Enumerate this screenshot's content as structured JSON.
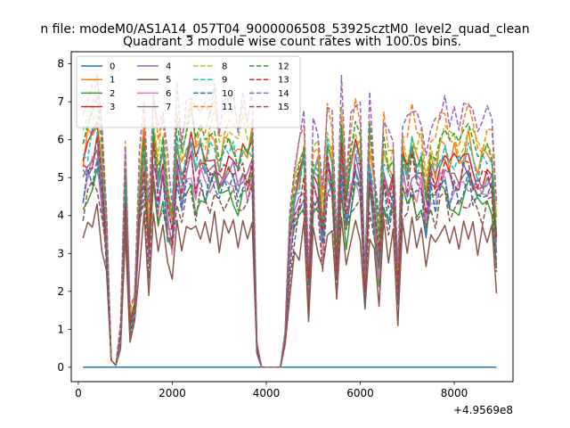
{
  "chart_data": {
    "type": "line",
    "suptitle": "n file: modeM0/AS1A14_057T04_9000006508_53925cztM0_level2_quad_clean",
    "title": "Quadrant 3 module wise count rates with 100.0s bins.",
    "xlabel": "",
    "ylabel": "",
    "x_offset_label": "+4.9569e8",
    "xlim": [
      -150,
      9250
    ],
    "ylim": [
      -0.38,
      8.32
    ],
    "xticks": [
      0,
      2000,
      4000,
      6000,
      8000
    ],
    "xtick_labels": [
      "0",
      "2000",
      "4000",
      "6000",
      "8000"
    ],
    "yticks": [
      0,
      1,
      2,
      3,
      4,
      5,
      6,
      7,
      8
    ],
    "ytick_labels": [
      "0",
      "1",
      "2",
      "3",
      "4",
      "5",
      "6",
      "7",
      "8"
    ],
    "grid": false,
    "legend_position": "top-left",
    "legend_columns": 4,
    "x_start": 100,
    "x_step": 100,
    "point_count": 89,
    "active_base": [
      5.25,
      5.62,
      5.85,
      6.2,
      5.05,
      3.4,
      0.18,
      0.05,
      0.9,
      4.8,
      1.2,
      1.6,
      4.3,
      5.8,
      3.2,
      5.9,
      4.8,
      5.6,
      4.2,
      3.6,
      5.7,
      4.9,
      5.3,
      5.9,
      5.2,
      5.6,
      5.3,
      5.5,
      5.7,
      5.1,
      5.4,
      5.8,
      5.5,
      5.1,
      5.6,
      5.3,
      5.7,
      0.55,
      0.0,
      0.0,
      0.0,
      0.0,
      0.0,
      0.75,
      3.3,
      4.1,
      4.8,
      5.3,
      2.2,
      5.1,
      5.0,
      3.6,
      5.6,
      5.2,
      2.9,
      5.9,
      4.1,
      5.1,
      5.7,
      5.3,
      2.1,
      5.5,
      4.3,
      2.9,
      5.4,
      4.7,
      5.0,
      2.0,
      5.3,
      5.0,
      5.6,
      5.1,
      5.3,
      4.2,
      5.2,
      5.0,
      5.4,
      5.5,
      5.2,
      5.3,
      5.1,
      5.4,
      5.6,
      5.3,
      5.0,
      5.1,
      5.5,
      5.2,
      3.4
    ],
    "series": [
      {
        "name": "0",
        "color": "#1f77b4",
        "style": "solid",
        "constant": 0
      },
      {
        "name": "1",
        "color": "#ff7f0e",
        "style": "solid",
        "scale": 1.06
      },
      {
        "name": "2",
        "color": "#2ca02c",
        "style": "solid",
        "scale": 0.84
      },
      {
        "name": "3",
        "color": "#d62728",
        "style": "solid",
        "scale": 1.0
      },
      {
        "name": "4",
        "color": "#9467bd",
        "style": "solid",
        "scale": 0.93
      },
      {
        "name": "5",
        "color": "#8c564b",
        "style": "solid",
        "scale": 0.66
      },
      {
        "name": "6",
        "color": "#e377c2",
        "style": "solid",
        "scale": 0.89
      },
      {
        "name": "7",
        "color": "#7f7f7f",
        "style": "solid",
        "scale": 0.97
      },
      {
        "name": "8",
        "color": "#bcbd22",
        "style": "dashed",
        "scale": 1.13
      },
      {
        "name": "9",
        "color": "#17becf",
        "style": "dashed",
        "scale": 1.03
      },
      {
        "name": "10",
        "color": "#1f77b4",
        "style": "dashed",
        "scale": 0.87
      },
      {
        "name": "11",
        "color": "#ff7f0e",
        "style": "dashed",
        "scale": 1.18
      },
      {
        "name": "12",
        "color": "#2ca02c",
        "style": "dashed",
        "scale": 1.1
      },
      {
        "name": "13",
        "color": "#d62728",
        "style": "dashed",
        "scale": 0.95
      },
      {
        "name": "14",
        "color": "#9467bd",
        "style": "dashed",
        "scale": 1.26
      },
      {
        "name": "15",
        "color": "#8c564b",
        "style": "dashed",
        "scale": 0.8
      }
    ]
  }
}
